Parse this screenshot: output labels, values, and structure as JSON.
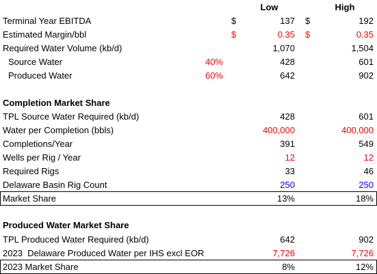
{
  "columns": {
    "low": "Low",
    "high": "High"
  },
  "top": {
    "terminal_ebitda": {
      "label": "Terminal Year EBITDA",
      "cur_low": "$",
      "low": "137",
      "cur_high": "$",
      "high": "192"
    },
    "margin": {
      "label": "Estimated Margin/bbl",
      "cur_low": "$",
      "low": "0.35",
      "cur_high": "$",
      "high": "0.35"
    },
    "water_volume": {
      "label": "Required Water Volume (kb/d)",
      "low": "1,070",
      "high": "1,504"
    },
    "source_water": {
      "label": "Source Water",
      "pct": "40%",
      "low": "428",
      "high": "601"
    },
    "produced_water": {
      "label": "Produced Water",
      "pct": "60%",
      "low": "642",
      "high": "902"
    }
  },
  "completion": {
    "title": "Completion Market Share",
    "tpl_source": {
      "label": "TPL Source Water Required (kb/d)",
      "low": "428",
      "high": "601"
    },
    "water_per_completion": {
      "label": "Water per Completion (bbls)",
      "low": "400,000",
      "high": "400,000"
    },
    "completions_year": {
      "label": "Completions/Year",
      "low": "391",
      "high": "549"
    },
    "wells_per_rig": {
      "label": "Wells per Rig / Year",
      "low": "12",
      "high": "12"
    },
    "required_rigs": {
      "label": "Required Rigs",
      "low": "33",
      "high": "46"
    },
    "rig_count": {
      "label": "Delaware Basin Rig Count",
      "low": "250",
      "high": "250"
    },
    "market_share": {
      "label": "Market Share",
      "low": "13%",
      "high": "18%"
    }
  },
  "produced": {
    "title": "Produced Water Market Share",
    "tpl_produced": {
      "label": "TPL Produced Water Required (kb/d)",
      "low": "642",
      "high": "902"
    },
    "delaware_produced": {
      "label": "2023  Delaware Produced Water per IHS excl EOR",
      "low": "7,726",
      "high": "7,726"
    },
    "market_share_2023": {
      "label": "2023 Market Share",
      "low": "8%",
      "high": "12%"
    }
  },
  "colors": {
    "input_red": "#ff0000",
    "input_blue": "#0000ff",
    "text": "#000000"
  }
}
